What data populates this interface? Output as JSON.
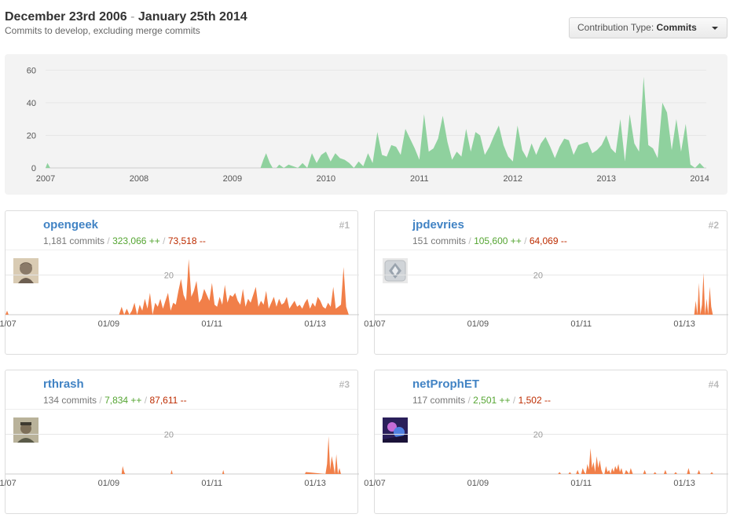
{
  "header": {
    "range_start": "December 23rd 2006",
    "range_sep": "-",
    "range_end": "January 25th 2014",
    "subtitle": "Commits to develop, excluding merge commits"
  },
  "dropdown": {
    "prefix": "Contribution Type:",
    "value": "Commits"
  },
  "colors": {
    "overview_fill": "#8fd19e",
    "contributor_fill": "#f17f49"
  },
  "chart_data": [
    {
      "type": "area",
      "id": "overview",
      "x_ticks": [
        "2007",
        "2008",
        "2009",
        "2010",
        "2011",
        "2012",
        "2013",
        "2014"
      ],
      "y_ticks": [
        0,
        20,
        40,
        60
      ],
      "ylim": [
        0,
        65
      ],
      "x": [
        2007.0,
        2007.02,
        2007.05,
        2007.08,
        2009.3,
        2009.33,
        2009.36,
        2009.4,
        2009.43,
        2009.47,
        2009.5,
        2009.55,
        2009.6,
        2009.65,
        2009.7,
        2009.75,
        2009.8,
        2009.85,
        2009.9,
        2009.95,
        2010.0,
        2010.05,
        2010.1,
        2010.15,
        2010.2,
        2010.25,
        2010.3,
        2010.35,
        2010.4,
        2010.45,
        2010.5,
        2010.55,
        2010.6,
        2010.65,
        2010.7,
        2010.75,
        2010.8,
        2010.85,
        2010.9,
        2010.95,
        2011.0,
        2011.05,
        2011.1,
        2011.15,
        2011.2,
        2011.25,
        2011.3,
        2011.35,
        2011.4,
        2011.45,
        2011.5,
        2011.55,
        2011.6,
        2011.65,
        2011.7,
        2011.75,
        2011.8,
        2011.85,
        2011.9,
        2011.95,
        2012.0,
        2012.05,
        2012.1,
        2012.15,
        2012.2,
        2012.25,
        2012.3,
        2012.35,
        2012.4,
        2012.45,
        2012.5,
        2012.55,
        2012.6,
        2012.65,
        2012.7,
        2012.75,
        2012.8,
        2012.85,
        2012.9,
        2012.95,
        2013.0,
        2013.05,
        2013.1,
        2013.15,
        2013.2,
        2013.25,
        2013.3,
        2013.35,
        2013.4,
        2013.45,
        2013.5,
        2013.55,
        2013.6,
        2013.65,
        2013.7,
        2013.75,
        2013.8,
        2013.85,
        2013.9,
        2013.95,
        2014.0,
        2014.05
      ],
      "values": [
        0,
        3,
        0,
        0,
        0,
        5,
        9,
        3,
        0,
        0,
        2,
        0,
        2,
        1,
        0,
        3,
        0,
        9,
        3,
        8,
        10,
        4,
        9,
        6,
        5,
        3,
        0,
        4,
        1,
        9,
        3,
        22,
        8,
        7,
        14,
        13,
        8,
        24,
        18,
        12,
        5,
        33,
        10,
        12,
        18,
        32,
        16,
        5,
        10,
        7,
        24,
        10,
        22,
        20,
        8,
        13,
        20,
        26,
        14,
        7,
        4,
        26,
        11,
        6,
        15,
        8,
        15,
        19,
        13,
        6,
        13,
        18,
        17,
        8,
        14,
        15,
        16,
        9,
        11,
        14,
        20,
        12,
        9,
        30,
        4,
        33,
        15,
        10,
        56,
        14,
        12,
        6,
        40,
        34,
        11,
        30,
        10,
        27,
        2,
        0,
        3,
        0
      ]
    },
    {
      "type": "area",
      "id": "contributor-1",
      "x_ticks": [
        "01/07",
        "01/09",
        "01/11",
        "01/13"
      ],
      "y_ticks": [
        20
      ],
      "ylim": [
        0,
        30
      ],
      "x": [
        2007.0,
        2007.03,
        2007.06,
        2009.2,
        2009.25,
        2009.3,
        2009.35,
        2009.4,
        2009.45,
        2009.5,
        2009.55,
        2009.6,
        2009.65,
        2009.7,
        2009.75,
        2009.8,
        2009.85,
        2009.9,
        2009.95,
        2010.0,
        2010.05,
        2010.1,
        2010.15,
        2010.2,
        2010.25,
        2010.3,
        2010.35,
        2010.4,
        2010.45,
        2010.5,
        2010.55,
        2010.6,
        2010.65,
        2010.7,
        2010.75,
        2010.8,
        2010.85,
        2010.9,
        2010.95,
        2011.0,
        2011.05,
        2011.1,
        2011.15,
        2011.2,
        2011.25,
        2011.3,
        2011.35,
        2011.4,
        2011.45,
        2011.5,
        2011.55,
        2011.6,
        2011.65,
        2011.7,
        2011.75,
        2011.8,
        2011.85,
        2011.9,
        2011.95,
        2012.0,
        2012.05,
        2012.1,
        2012.15,
        2012.2,
        2012.25,
        2012.3,
        2012.35,
        2012.4,
        2012.45,
        2012.5,
        2012.55,
        2012.6,
        2012.65,
        2012.7,
        2012.75,
        2012.8,
        2012.85,
        2012.9,
        2012.95,
        2013.0,
        2013.05,
        2013.1,
        2013.15,
        2013.2,
        2013.25,
        2013.3,
        2013.35,
        2013.4,
        2013.45,
        2013.5,
        2013.55,
        2013.6,
        2013.65
      ],
      "values": [
        0,
        2,
        0,
        0,
        4,
        0,
        3,
        0,
        2,
        6,
        0,
        5,
        2,
        8,
        3,
        11,
        0,
        6,
        4,
        8,
        3,
        7,
        11,
        2,
        6,
        5,
        12,
        18,
        10,
        7,
        28,
        9,
        12,
        17,
        6,
        8,
        13,
        10,
        7,
        16,
        5,
        4,
        9,
        5,
        15,
        6,
        10,
        9,
        11,
        7,
        5,
        13,
        4,
        8,
        6,
        10,
        14,
        4,
        7,
        5,
        12,
        3,
        6,
        9,
        4,
        8,
        5,
        6,
        9,
        3,
        5,
        7,
        4,
        5,
        3,
        6,
        8,
        3,
        6,
        4,
        9,
        7,
        4,
        3,
        6,
        4,
        14,
        3,
        4,
        5,
        24,
        4,
        0
      ]
    },
    {
      "type": "area",
      "id": "contributor-2",
      "x_ticks": [
        "01/07",
        "01/09",
        "01/11",
        "01/13"
      ],
      "y_ticks": [
        20
      ],
      "ylim": [
        0,
        30
      ],
      "x": [
        2013.1,
        2013.13,
        2013.16,
        2013.19,
        2013.22,
        2013.25,
        2013.28,
        2013.31,
        2013.34,
        2013.37,
        2013.4,
        2013.43,
        2013.46,
        2013.49,
        2013.52,
        2013.55,
        2013.58,
        2013.61,
        2013.64
      ],
      "values": [
        0,
        0,
        0,
        0,
        7,
        0,
        16,
        0,
        5,
        21,
        0,
        8,
        0,
        14,
        4,
        0,
        0,
        0,
        0
      ]
    },
    {
      "type": "area",
      "id": "contributor-3",
      "x_ticks": [
        "01/07",
        "01/09",
        "01/11",
        "01/13"
      ],
      "y_ticks": [
        20
      ],
      "ylim": [
        0,
        30
      ],
      "x": [
        2009.25,
        2009.27,
        2009.3,
        2009.32,
        2010.2,
        2010.22,
        2010.24,
        2011.2,
        2011.22,
        2011.24,
        2012.8,
        2012.82,
        2013.2,
        2013.23,
        2013.26,
        2013.29,
        2013.32,
        2013.35,
        2013.38,
        2013.41,
        2013.44,
        2013.47,
        2013.5,
        2013.53
      ],
      "values": [
        0,
        4,
        1,
        0,
        0,
        2,
        0,
        0,
        2,
        0,
        0,
        1,
        0,
        5,
        19,
        2,
        9,
        5,
        0,
        10,
        0,
        3,
        0,
        0
      ]
    },
    {
      "type": "area",
      "id": "contributor-4",
      "x_ticks": [
        "01/07",
        "01/09",
        "01/11",
        "01/13"
      ],
      "y_ticks": [
        20
      ],
      "ylim": [
        0,
        30
      ],
      "x": [
        2010.55,
        2010.58,
        2010.61,
        2010.75,
        2010.78,
        2010.81,
        2010.9,
        2010.93,
        2010.96,
        2011.0,
        2011.03,
        2011.06,
        2011.09,
        2011.12,
        2011.15,
        2011.18,
        2011.21,
        2011.24,
        2011.27,
        2011.3,
        2011.33,
        2011.36,
        2011.39,
        2011.42,
        2011.45,
        2011.48,
        2011.51,
        2011.54,
        2011.57,
        2011.6,
        2011.63,
        2011.66,
        2011.69,
        2011.72,
        2011.75,
        2011.78,
        2011.81,
        2011.84,
        2011.87,
        2011.9,
        2011.93,
        2011.96,
        2012.0,
        2012.2,
        2012.23,
        2012.26,
        2012.4,
        2012.43,
        2012.46,
        2012.6,
        2012.63,
        2012.66,
        2012.8,
        2012.83,
        2012.86,
        2013.05,
        2013.08,
        2013.11,
        2013.25,
        2013.28,
        2013.31,
        2013.5,
        2013.53,
        2013.56
      ],
      "values": [
        0,
        1,
        0,
        0,
        1,
        0,
        0,
        2,
        0,
        0,
        3,
        1,
        0,
        5,
        2,
        13,
        3,
        6,
        1,
        9,
        3,
        7,
        2,
        0,
        0,
        4,
        1,
        2,
        0,
        3,
        1,
        4,
        2,
        5,
        1,
        3,
        0,
        0,
        2,
        1,
        0,
        3,
        0,
        0,
        2,
        0,
        0,
        1,
        0,
        0,
        2,
        0,
        0,
        1,
        0,
        0,
        3,
        0,
        0,
        2,
        0,
        0,
        1,
        0
      ]
    }
  ],
  "contributors": [
    {
      "name": "opengeek",
      "commits": "1,181 commits",
      "additions": "323,066 ++",
      "deletions": "73,518 --",
      "rank": "#1"
    },
    {
      "name": "jpdevries",
      "commits": "151 commits",
      "additions": "105,600 ++",
      "deletions": "64,069 --",
      "rank": "#2"
    },
    {
      "name": "rthrash",
      "commits": "134 commits",
      "additions": "7,834 ++",
      "deletions": "87,611 --",
      "rank": "#3"
    },
    {
      "name": "netProphET",
      "commits": "117 commits",
      "additions": "2,501 ++",
      "deletions": "1,502 --",
      "rank": "#4"
    }
  ],
  "slash": "/"
}
